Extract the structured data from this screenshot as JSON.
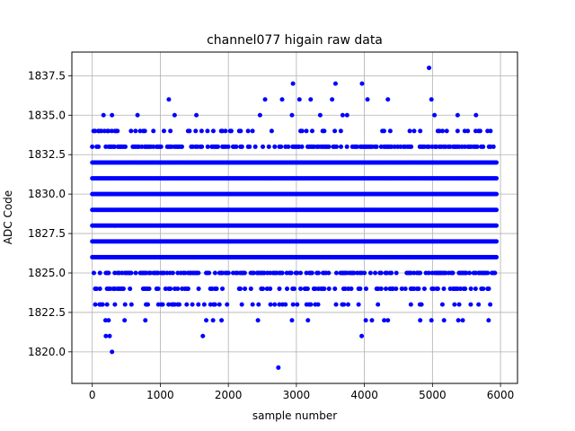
{
  "chart_data": {
    "type": "scatter",
    "title": "channel077 higain raw data",
    "xlabel": "sample number",
    "ylabel": "ADC Code",
    "xlim": [
      -300,
      6250
    ],
    "ylim": [
      1818.0,
      1839.0
    ],
    "xticks": [
      0,
      1000,
      2000,
      3000,
      4000,
      5000,
      6000
    ],
    "xtick_labels": [
      "0",
      "1000",
      "2000",
      "3000",
      "4000",
      "5000",
      "6000"
    ],
    "yticks": [
      1820.0,
      1822.5,
      1825.0,
      1827.5,
      1830.0,
      1832.5,
      1835.0,
      1837.5
    ],
    "ytick_labels": [
      "1820.0",
      "1822.5",
      "1825.0",
      "1827.5",
      "1830.0",
      "1832.5",
      "1835.0",
      "1837.5"
    ],
    "grid": true,
    "marker_color": "#0000ff",
    "x_range": [
      0,
      5940
    ],
    "series": [
      {
        "levels": [
          {
            "y": 1826,
            "x": [
              0,
              5940
            ]
          },
          {
            "y": 1827,
            "x": [
              0,
              5940
            ]
          },
          {
            "y": 1828,
            "x": [
              0,
              5940
            ]
          },
          {
            "y": 1829,
            "x": [
              0,
              5940
            ]
          },
          {
            "y": 1830,
            "x": [
              0,
              5940
            ]
          },
          {
            "y": 1831,
            "x": [
              0,
              5940
            ]
          },
          {
            "y": 1832,
            "x": [
              0,
              5940
            ]
          }
        ],
        "outliers": [
          {
            "x": 2735,
            "y": 1819
          },
          {
            "x": 290,
            "y": 1820
          },
          {
            "x": 200,
            "y": 1821
          },
          {
            "x": 255,
            "y": 1821
          },
          {
            "x": 1625,
            "y": 1821
          },
          {
            "x": 3960,
            "y": 1821
          },
          {
            "x": 195,
            "y": 1822
          },
          {
            "x": 240,
            "y": 1822
          },
          {
            "x": 475,
            "y": 1822
          },
          {
            "x": 780,
            "y": 1822
          },
          {
            "x": 1675,
            "y": 1822
          },
          {
            "x": 1775,
            "y": 1822
          },
          {
            "x": 1900,
            "y": 1822
          },
          {
            "x": 2435,
            "y": 1822
          },
          {
            "x": 2935,
            "y": 1822
          },
          {
            "x": 3170,
            "y": 1822
          },
          {
            "x": 4020,
            "y": 1822
          },
          {
            "x": 4110,
            "y": 1822
          },
          {
            "x": 4290,
            "y": 1822
          },
          {
            "x": 4345,
            "y": 1822
          },
          {
            "x": 4820,
            "y": 1822
          },
          {
            "x": 4985,
            "y": 1822
          },
          {
            "x": 5170,
            "y": 1822
          },
          {
            "x": 5380,
            "y": 1822
          },
          {
            "x": 5445,
            "y": 1822
          },
          {
            "x": 5825,
            "y": 1822
          },
          {
            "x": 4950,
            "y": 1838
          },
          {
            "x": 2950,
            "y": 1837
          },
          {
            "x": 3575,
            "y": 1837
          },
          {
            "x": 3965,
            "y": 1837
          },
          {
            "x": 1125,
            "y": 1836
          },
          {
            "x": 2540,
            "y": 1836
          },
          {
            "x": 2790,
            "y": 1836
          },
          {
            "x": 3045,
            "y": 1836
          },
          {
            "x": 3210,
            "y": 1836
          },
          {
            "x": 3525,
            "y": 1836
          },
          {
            "x": 4045,
            "y": 1836
          },
          {
            "x": 4345,
            "y": 1836
          },
          {
            "x": 4985,
            "y": 1836
          },
          {
            "x": 165,
            "y": 1835
          },
          {
            "x": 290,
            "y": 1835
          },
          {
            "x": 665,
            "y": 1835
          },
          {
            "x": 1210,
            "y": 1835
          },
          {
            "x": 1530,
            "y": 1835
          },
          {
            "x": 2465,
            "y": 1835
          },
          {
            "x": 2935,
            "y": 1835
          },
          {
            "x": 3350,
            "y": 1835
          },
          {
            "x": 3680,
            "y": 1835
          },
          {
            "x": 3745,
            "y": 1835
          },
          {
            "x": 5030,
            "y": 1835
          },
          {
            "x": 5370,
            "y": 1835
          },
          {
            "x": 5640,
            "y": 1835
          }
        ]
      }
    ]
  }
}
